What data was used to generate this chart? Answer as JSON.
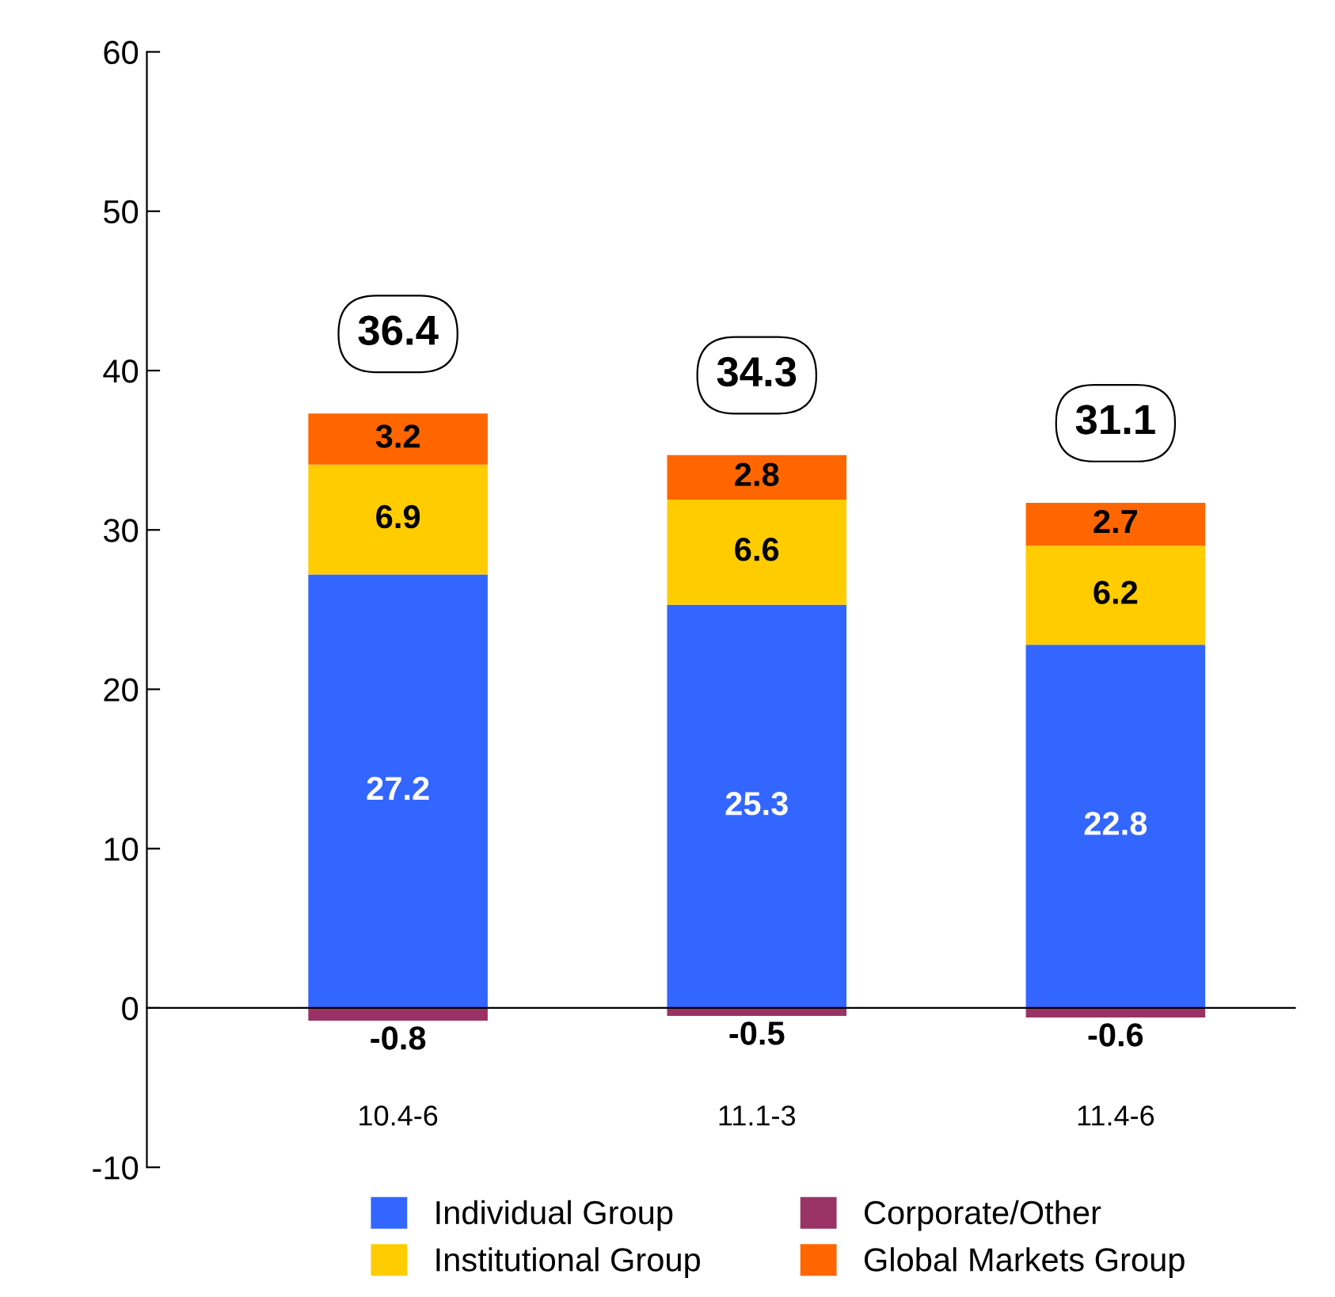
{
  "chart_data": {
    "type": "bar",
    "stacked": true,
    "categories": [
      "10.4-6",
      "11.1-3",
      "11.4-6"
    ],
    "series": [
      {
        "name": "Individual Group",
        "color": "#3366ff",
        "values": [
          27.2,
          25.3,
          22.8
        ]
      },
      {
        "name": "Institutional Group",
        "color": "#ffcc00",
        "values": [
          6.9,
          6.6,
          6.2
        ]
      },
      {
        "name": "Corporate/Other",
        "color": "#993366",
        "values": [
          -0.8,
          -0.5,
          -0.6
        ]
      },
      {
        "name": "Global Markets Group",
        "color": "#ff6600",
        "values": [
          3.2,
          2.8,
          2.7
        ]
      }
    ],
    "totals": [
      "36.4",
      "34.3",
      "31.1"
    ],
    "data_labels": true,
    "ylim": [
      -10,
      60
    ],
    "yticks": [
      -10,
      0,
      10,
      20,
      30,
      40,
      50,
      60
    ],
    "legend": "bottom"
  }
}
